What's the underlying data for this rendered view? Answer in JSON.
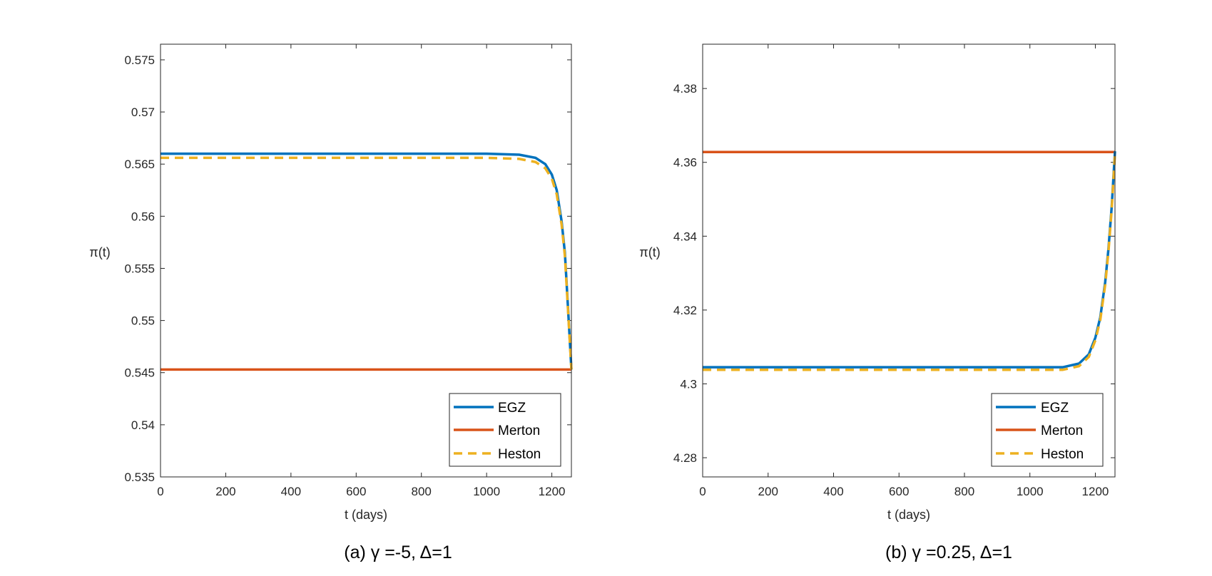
{
  "colors": {
    "EGZ": "#0072BD",
    "Merton": "#D95319",
    "Heston": "#EDB120",
    "axis": "#262626",
    "background": "#ffffff"
  },
  "chart_data": [
    {
      "type": "line",
      "caption": "(a)  γ =-5, Δ=1",
      "xlabel": "t (days)",
      "ylabel": "π(t)",
      "xlim": [
        0,
        1260
      ],
      "ylim": [
        0.535,
        0.5765
      ],
      "xticks": [
        0,
        200,
        400,
        600,
        800,
        1000,
        1200
      ],
      "xtick_labels": [
        "0",
        "200",
        "400",
        "600",
        "800",
        "1000",
        "1200"
      ],
      "yticks": [
        0.535,
        0.54,
        0.545,
        0.55,
        0.555,
        0.56,
        0.565,
        0.57,
        0.575
      ],
      "ytick_labels": [
        "0.535",
        "0.54",
        "0.545",
        "0.55",
        "0.555",
        "0.56",
        "0.565",
        "0.57",
        "0.575"
      ],
      "legend_position": "bottom-right",
      "series": [
        {
          "name": "EGZ",
          "style": "solid",
          "x": [
            0,
            1000,
            1100,
            1150,
            1180,
            1200,
            1215,
            1230,
            1240,
            1250,
            1260
          ],
          "y": [
            0.566,
            0.566,
            0.5659,
            0.5656,
            0.565,
            0.564,
            0.5625,
            0.5595,
            0.5565,
            0.551,
            0.5453
          ]
        },
        {
          "name": "Merton",
          "style": "solid",
          "x": [
            0,
            1260
          ],
          "y": [
            0.5453,
            0.5453
          ]
        },
        {
          "name": "Heston",
          "style": "dashed",
          "x": [
            0,
            1000,
            1100,
            1150,
            1180,
            1200,
            1215,
            1230,
            1240,
            1250,
            1260
          ],
          "y": [
            0.5656,
            0.5656,
            0.5655,
            0.5652,
            0.5646,
            0.5636,
            0.5621,
            0.5592,
            0.5562,
            0.5508,
            0.5453
          ]
        }
      ]
    },
    {
      "type": "line",
      "caption": "(b)  γ =0.25, Δ=1",
      "xlabel": "t (days)",
      "ylabel": "π(t)",
      "xlim": [
        0,
        1260
      ],
      "ylim": [
        4.2748,
        4.392
      ],
      "xticks": [
        0,
        200,
        400,
        600,
        800,
        1000,
        1200
      ],
      "xtick_labels": [
        "0",
        "200",
        "400",
        "600",
        "800",
        "1000",
        "1200"
      ],
      "yticks": [
        4.28,
        4.3,
        4.32,
        4.34,
        4.36,
        4.38
      ],
      "ytick_labels": [
        "4.28",
        "4.3",
        "4.32",
        "4.34",
        "4.36",
        "4.38"
      ],
      "legend_position": "bottom-right",
      "series": [
        {
          "name": "EGZ",
          "style": "solid",
          "x": [
            0,
            1100,
            1150,
            1180,
            1200,
            1215,
            1230,
            1240,
            1250,
            1260
          ],
          "y": [
            4.3045,
            4.3045,
            4.3055,
            4.308,
            4.3125,
            4.318,
            4.3275,
            4.3365,
            4.348,
            4.363
          ]
        },
        {
          "name": "Merton",
          "style": "solid",
          "x": [
            0,
            1260
          ],
          "y": [
            4.3628,
            4.3628
          ]
        },
        {
          "name": "Heston",
          "style": "dashed",
          "x": [
            0,
            1100,
            1150,
            1180,
            1200,
            1215,
            1230,
            1240,
            1250,
            1260
          ],
          "y": [
            4.3038,
            4.3038,
            4.3048,
            4.3073,
            4.3118,
            4.3173,
            4.3268,
            4.3358,
            4.3473,
            4.3623
          ]
        }
      ]
    }
  ]
}
